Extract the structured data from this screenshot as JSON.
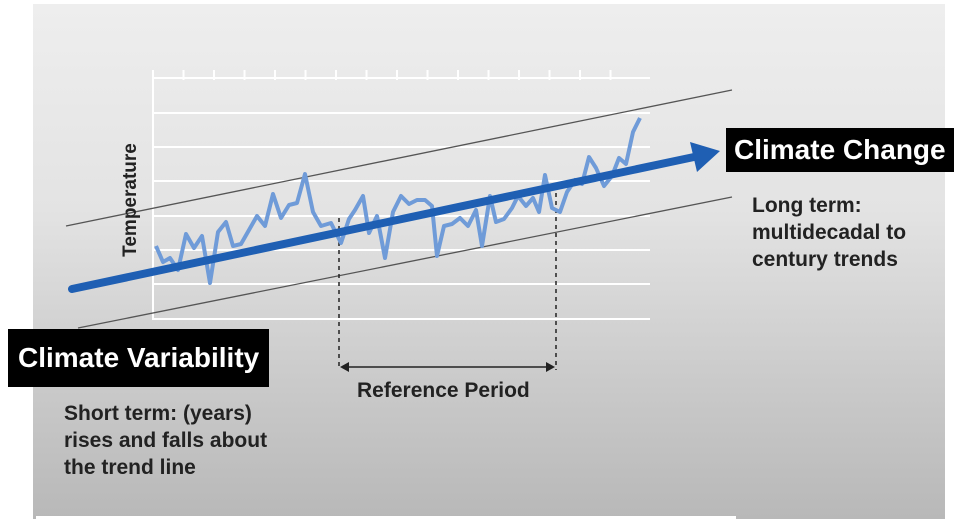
{
  "diagram": {
    "y_axis_label": "Temperature",
    "climate_change": {
      "label": "Climate Change",
      "description_lines": [
        "Long term:",
        "multidecadal to",
        "century trends"
      ]
    },
    "climate_variability": {
      "label": "Climate Variability",
      "description_lines": [
        "Short term: (years)",
        "rises and falls about",
        "the trend line"
      ]
    },
    "reference_period": {
      "label": "Reference Period"
    },
    "colors": {
      "trend_arrow": "#1f5fb3",
      "temperature_line": "#6f9bd8",
      "label_background": "#000000",
      "label_text": "#ffffff",
      "grid": "#ffffff",
      "envelope_lines": "#555555"
    }
  }
}
